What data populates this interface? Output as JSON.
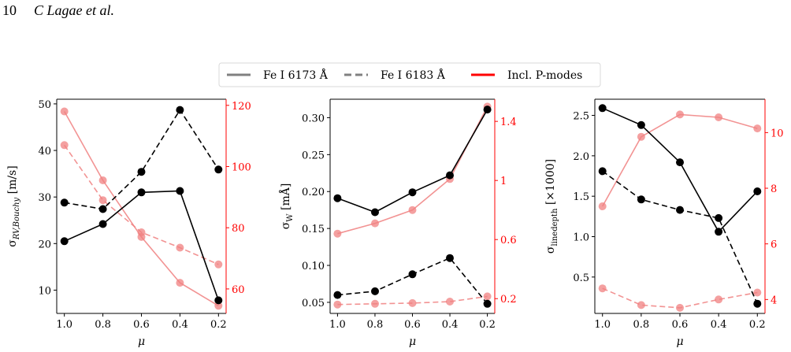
{
  "page_header": {
    "page_number": "10",
    "authors": "C Lagae et al."
  },
  "legend": {
    "items": [
      {
        "label": "Fe I 6173 Å",
        "style": "solid",
        "color": "#808080"
      },
      {
        "label": "Fe I 6183 Å",
        "style": "dashed",
        "color": "#808080"
      },
      {
        "label": "Incl. P-modes",
        "style": "solid",
        "color": "#ff0000"
      }
    ]
  },
  "colors": {
    "primary": "#000000",
    "secondary": "#f08080",
    "secondary_axis": "#ff0000"
  },
  "chart_data": [
    {
      "type": "line",
      "x": [
        1.0,
        0.8,
        0.6,
        0.4,
        0.2
      ],
      "x_ticks": [
        "1.0",
        "0.8",
        "0.6",
        "0.4",
        "0.2"
      ],
      "xlabel": "μ",
      "ylabel": "σ",
      "ylabel_sub": "RV,Bouchy",
      "ylabel_unit": " [m/s]",
      "ylim": [
        5,
        51
      ],
      "yticks": [
        10,
        20,
        30,
        40,
        50
      ],
      "y2lim": [
        52,
        122
      ],
      "y2ticks": [
        60,
        80,
        100,
        120
      ],
      "series": [
        {
          "axis": "left",
          "color": "#000000",
          "style": "solid",
          "values": [
            20.5,
            24.2,
            31.0,
            31.3,
            7.8
          ]
        },
        {
          "axis": "left",
          "color": "#000000",
          "style": "dashed",
          "values": [
            28.8,
            27.4,
            35.4,
            48.7,
            35.9
          ]
        },
        {
          "axis": "right",
          "color": "#f08080",
          "style": "solid",
          "values": [
            118.0,
            95.5,
            77.0,
            62.0,
            54.5
          ]
        },
        {
          "axis": "right",
          "color": "#f08080",
          "style": "dashed",
          "values": [
            107.0,
            89.0,
            78.5,
            73.5,
            68.0
          ]
        }
      ]
    },
    {
      "type": "line",
      "x": [
        1.0,
        0.8,
        0.6,
        0.4,
        0.2
      ],
      "x_ticks": [
        "1.0",
        "0.8",
        "0.6",
        "0.4",
        "0.2"
      ],
      "xlabel": "μ",
      "ylabel": "σ",
      "ylabel_sub": "W",
      "ylabel_unit": " [mÅ]",
      "ylim": [
        0.035,
        0.325
      ],
      "yticks": [
        0.05,
        0.1,
        0.15,
        0.2,
        0.25,
        0.3
      ],
      "yticks_labels": [
        "0.05",
        "0.10",
        "0.15",
        "0.20",
        "0.25",
        "0.30"
      ],
      "y2lim": [
        0.1,
        1.55
      ],
      "y2ticks": [
        0.2,
        0.6,
        1.0,
        1.4
      ],
      "series": [
        {
          "axis": "left",
          "color": "#000000",
          "style": "solid",
          "values": [
            0.191,
            0.172,
            0.199,
            0.222,
            0.311
          ]
        },
        {
          "axis": "left",
          "color": "#000000",
          "style": "dashed",
          "values": [
            0.06,
            0.065,
            0.088,
            0.11,
            0.048
          ]
        },
        {
          "axis": "right",
          "color": "#f08080",
          "style": "solid",
          "values": [
            0.64,
            0.71,
            0.8,
            1.01,
            1.5
          ]
        },
        {
          "axis": "right",
          "color": "#f08080",
          "style": "dashed",
          "values": [
            0.16,
            0.165,
            0.17,
            0.18,
            0.215
          ]
        }
      ]
    },
    {
      "type": "line",
      "x": [
        1.0,
        0.8,
        0.6,
        0.4,
        0.2
      ],
      "x_ticks": [
        "1.0",
        "0.8",
        "0.6",
        "0.4",
        "0.2"
      ],
      "xlabel": "μ",
      "ylabel": "σ",
      "ylabel_sub": "linedepth",
      "ylabel_unit": " [×1000]",
      "ylim": [
        0.05,
        2.7
      ],
      "yticks": [
        0.5,
        1.0,
        1.5,
        2.0,
        2.5
      ],
      "yticks_labels": [
        "0.5",
        "1.0",
        "1.5",
        "2.0",
        "2.5"
      ],
      "y2lim": [
        3.5,
        11.2
      ],
      "y2ticks": [
        4,
        6,
        8,
        10
      ],
      "series": [
        {
          "axis": "left",
          "color": "#000000",
          "style": "solid",
          "values": [
            2.59,
            2.38,
            1.92,
            1.06,
            1.56
          ]
        },
        {
          "axis": "left",
          "color": "#000000",
          "style": "dashed",
          "values": [
            1.81,
            1.46,
            1.33,
            1.23,
            0.17
          ]
        },
        {
          "axis": "right",
          "color": "#f08080",
          "style": "solid",
          "values": [
            7.35,
            9.85,
            10.65,
            10.55,
            10.15
          ]
        },
        {
          "axis": "right",
          "color": "#f08080",
          "style": "dashed",
          "values": [
            4.4,
            3.8,
            3.7,
            4.0,
            4.25
          ]
        }
      ]
    }
  ]
}
